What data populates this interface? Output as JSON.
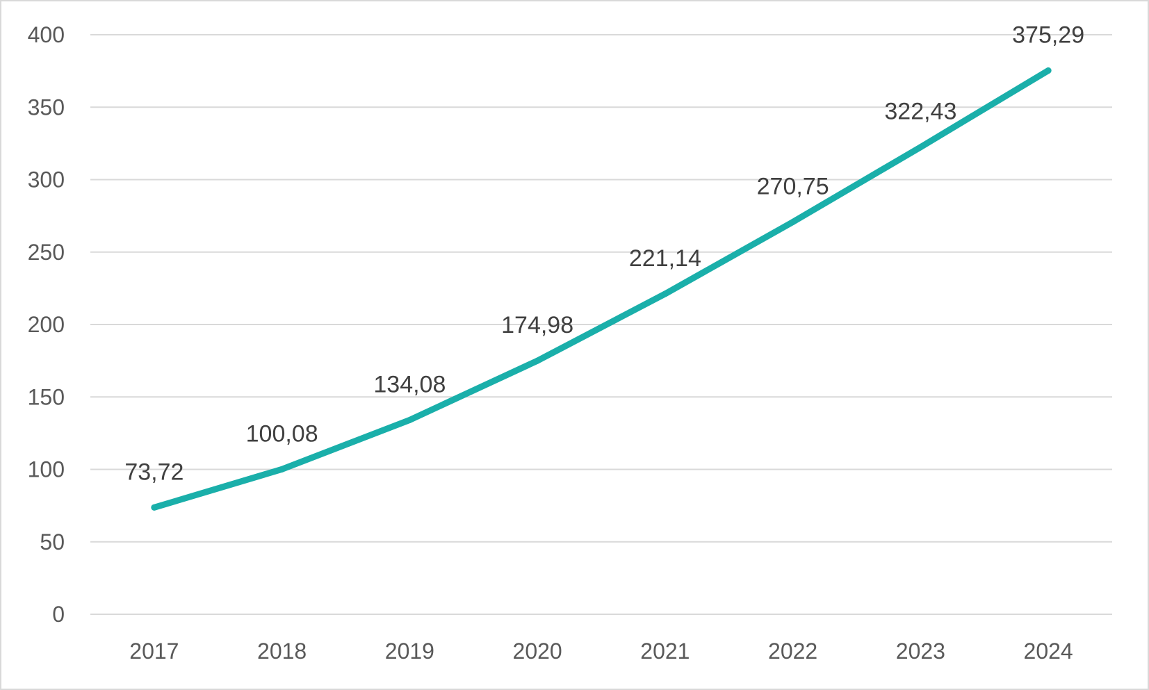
{
  "chart_data": {
    "type": "line",
    "title": "",
    "xlabel": "",
    "ylabel": "",
    "categories": [
      "2017",
      "2018",
      "2019",
      "2020",
      "2021",
      "2022",
      "2023",
      "2024"
    ],
    "series": [
      {
        "values": [
          73.72,
          100.08,
          134.08,
          174.98,
          221.14,
          270.75,
          322.43,
          375.29
        ],
        "labels": [
          "73,72",
          "100,08",
          "134,08",
          "174,98",
          "221,14",
          "270,75",
          "322,43",
          "375,29"
        ],
        "color": "#1aafaa"
      }
    ],
    "ylim": [
      0,
      400
    ],
    "yticks": [
      "0",
      "50",
      "100",
      "150",
      "200",
      "250",
      "300",
      "350",
      "400"
    ],
    "ytick_values": [
      0,
      50,
      100,
      150,
      200,
      250,
      300,
      350,
      400
    ],
    "grid": true,
    "legend": "none",
    "gridline_color": "#d9d9d9"
  }
}
